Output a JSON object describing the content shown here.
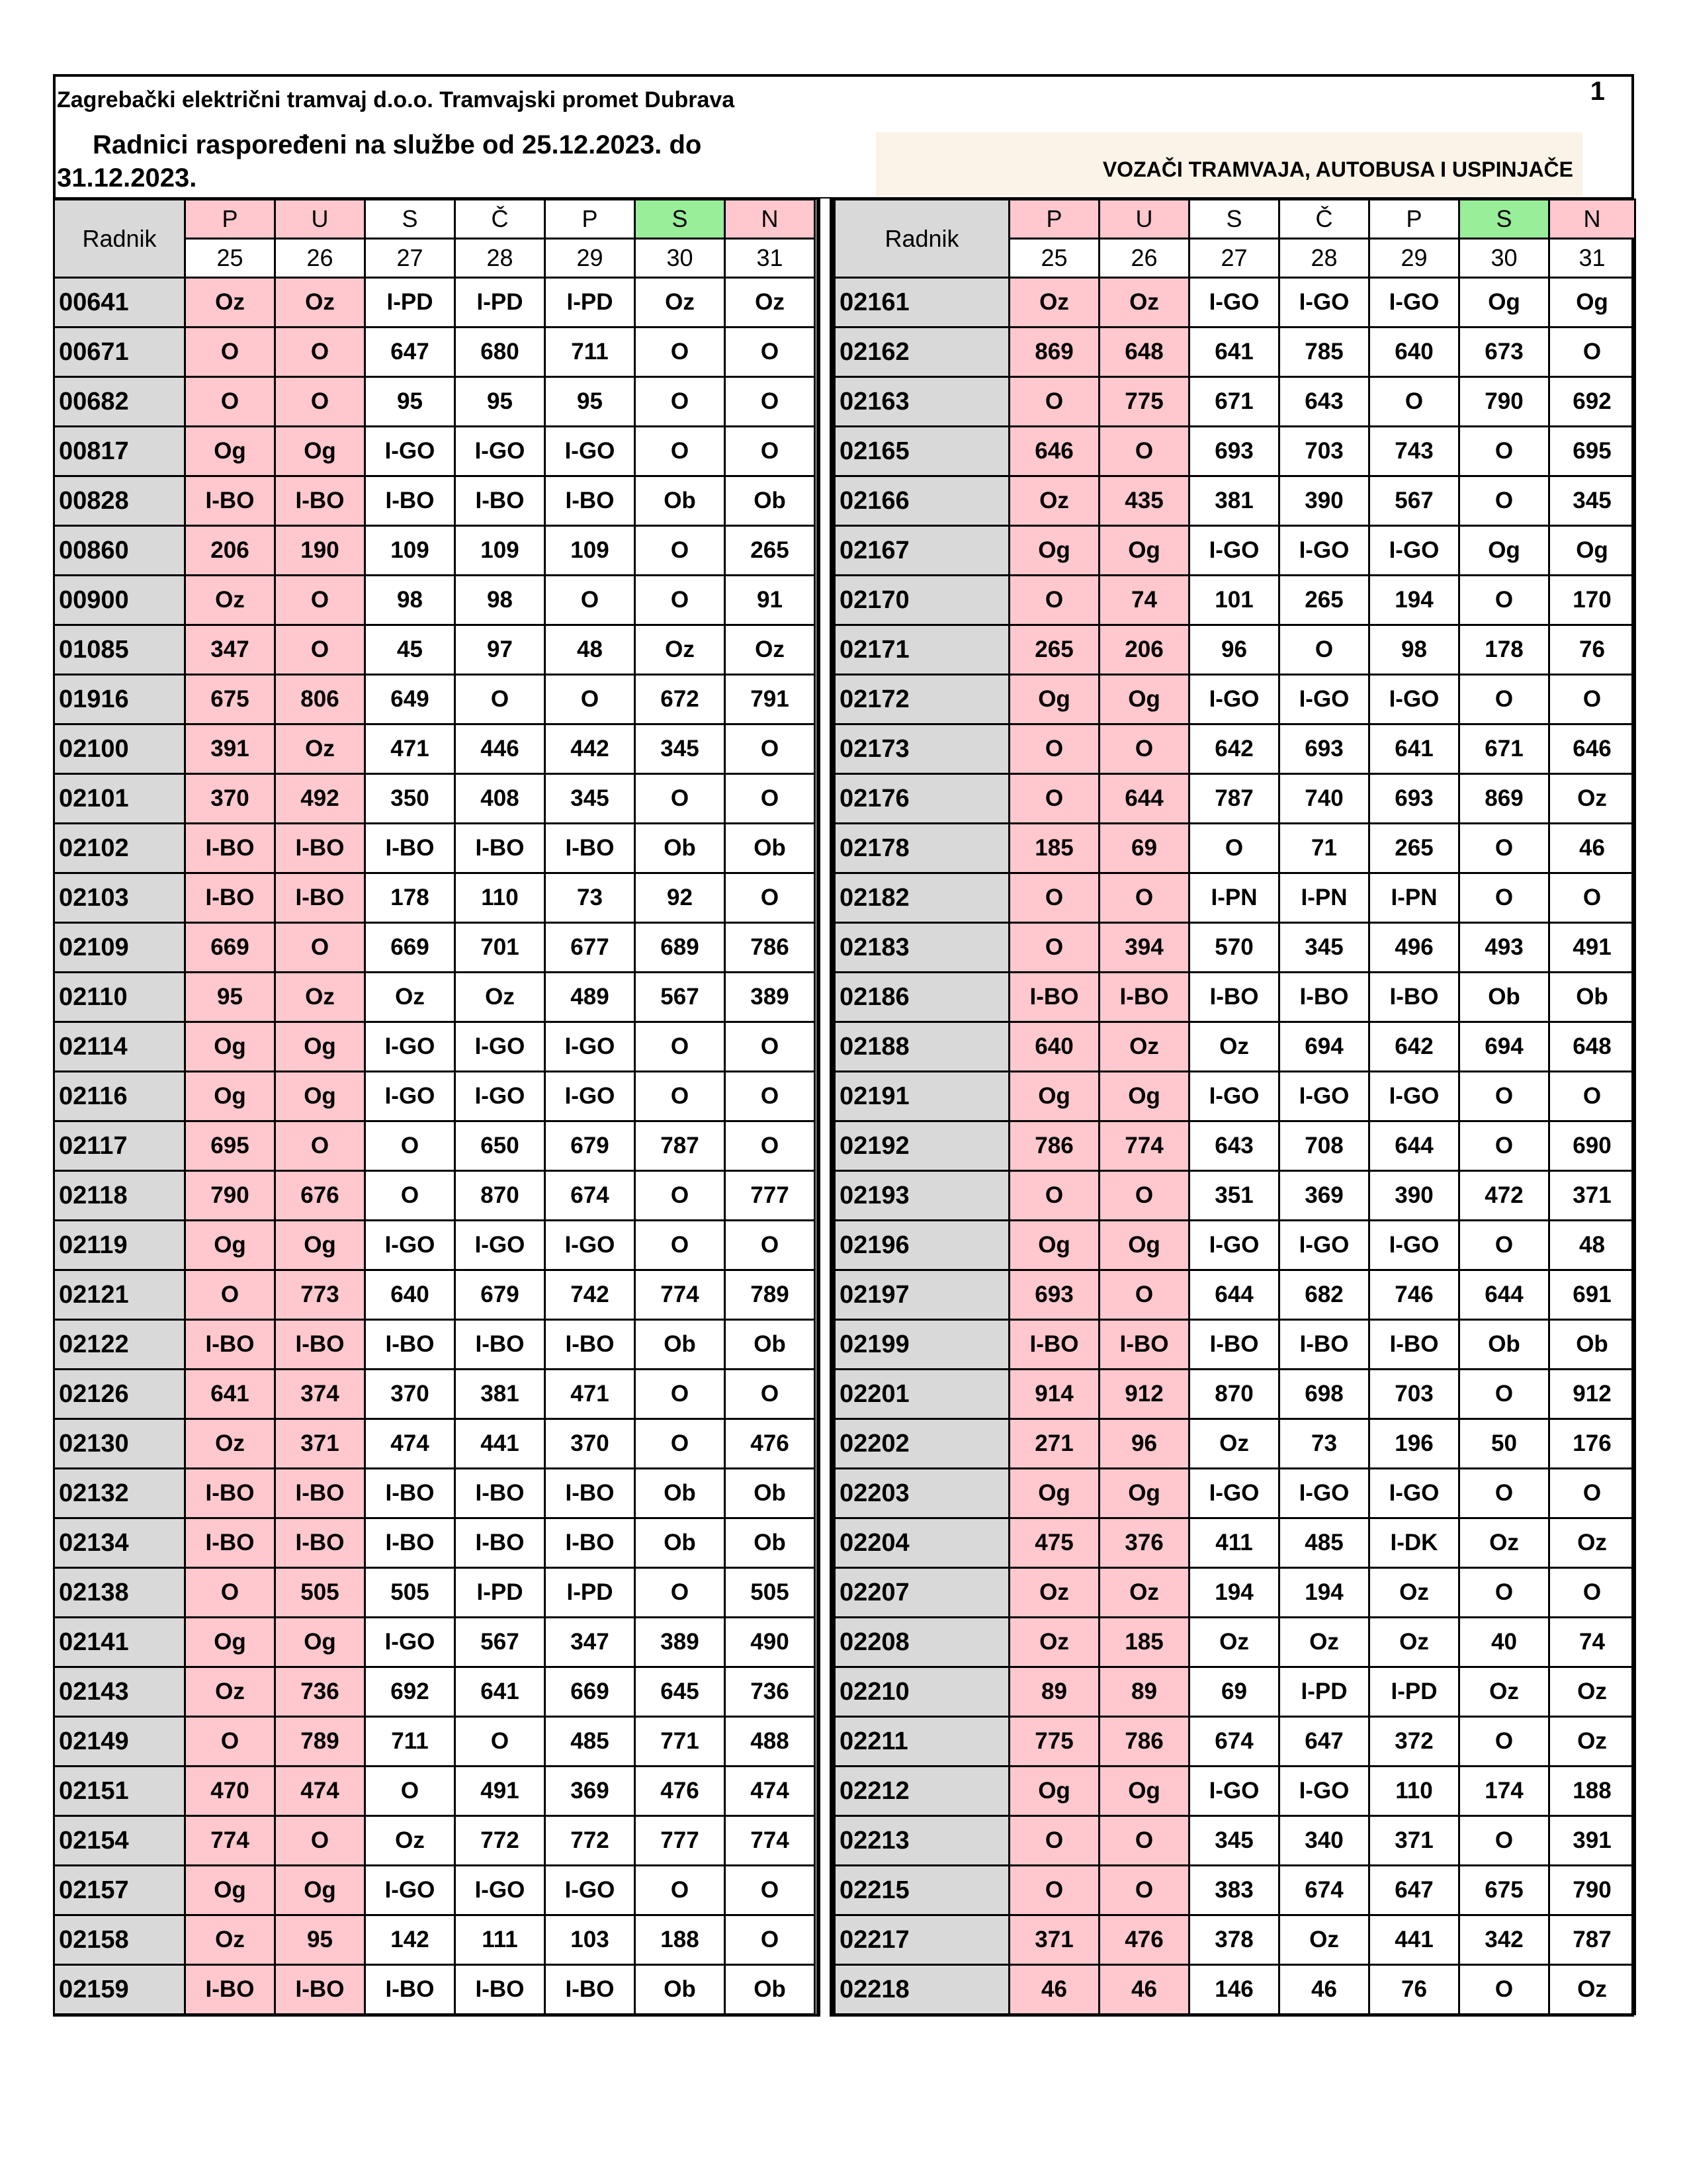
{
  "header": {
    "company": "Zagrebački električni tramvaj d.o.o. Tramvajski promet Dubrava",
    "page_number": "1",
    "subtitle_line1": "Radnici raspoređeni na službe od 25.12.2023. do",
    "subtitle_line2": "31.12.2023.",
    "category": "VOZAČI TRAMVAJA, AUTOBUSA I USPINJAČE"
  },
  "table": {
    "radnik_label": "Radnik",
    "days": [
      "P",
      "U",
      "S",
      "Č",
      "P",
      "S",
      "N"
    ],
    "dates": [
      "25",
      "26",
      "27",
      "28",
      "29",
      "30",
      "31"
    ],
    "colors": {
      "holiday": "#ffc7ce",
      "saturday": "#99ee99",
      "id_cell": "#d9d9d9"
    },
    "left_rows": [
      [
        "00641",
        "Oz",
        "Oz",
        "I-PD",
        "I-PD",
        "I-PD",
        "Oz",
        "Oz"
      ],
      [
        "00671",
        "O",
        "O",
        "647",
        "680",
        "711",
        "O",
        "O"
      ],
      [
        "00682",
        "O",
        "O",
        "95",
        "95",
        "95",
        "O",
        "O"
      ],
      [
        "00817",
        "Og",
        "Og",
        "I-GO",
        "I-GO",
        "I-GO",
        "O",
        "O"
      ],
      [
        "00828",
        "I-BO",
        "I-BO",
        "I-BO",
        "I-BO",
        "I-BO",
        "Ob",
        "Ob"
      ],
      [
        "00860",
        "206",
        "190",
        "109",
        "109",
        "109",
        "O",
        "265"
      ],
      [
        "00900",
        "Oz",
        "O",
        "98",
        "98",
        "O",
        "O",
        "91"
      ],
      [
        "01085",
        "347",
        "O",
        "45",
        "97",
        "48",
        "Oz",
        "Oz"
      ],
      [
        "01916",
        "675",
        "806",
        "649",
        "O",
        "O",
        "672",
        "791"
      ],
      [
        "02100",
        "391",
        "Oz",
        "471",
        "446",
        "442",
        "345",
        "O"
      ],
      [
        "02101",
        "370",
        "492",
        "350",
        "408",
        "345",
        "O",
        "O"
      ],
      [
        "02102",
        "I-BO",
        "I-BO",
        "I-BO",
        "I-BO",
        "I-BO",
        "Ob",
        "Ob"
      ],
      [
        "02103",
        "I-BO",
        "I-BO",
        "178",
        "110",
        "73",
        "92",
        "O"
      ],
      [
        "02109",
        "669",
        "O",
        "669",
        "701",
        "677",
        "689",
        "786"
      ],
      [
        "02110",
        "95",
        "Oz",
        "Oz",
        "Oz",
        "489",
        "567",
        "389"
      ],
      [
        "02114",
        "Og",
        "Og",
        "I-GO",
        "I-GO",
        "I-GO",
        "O",
        "O"
      ],
      [
        "02116",
        "Og",
        "Og",
        "I-GO",
        "I-GO",
        "I-GO",
        "O",
        "O"
      ],
      [
        "02117",
        "695",
        "O",
        "O",
        "650",
        "679",
        "787",
        "O"
      ],
      [
        "02118",
        "790",
        "676",
        "O",
        "870",
        "674",
        "O",
        "777"
      ],
      [
        "02119",
        "Og",
        "Og",
        "I-GO",
        "I-GO",
        "I-GO",
        "O",
        "O"
      ],
      [
        "02121",
        "O",
        "773",
        "640",
        "679",
        "742",
        "774",
        "789"
      ],
      [
        "02122",
        "I-BO",
        "I-BO",
        "I-BO",
        "I-BO",
        "I-BO",
        "Ob",
        "Ob"
      ],
      [
        "02126",
        "641",
        "374",
        "370",
        "381",
        "471",
        "O",
        "O"
      ],
      [
        "02130",
        "Oz",
        "371",
        "474",
        "441",
        "370",
        "O",
        "476"
      ],
      [
        "02132",
        "I-BO",
        "I-BO",
        "I-BO",
        "I-BO",
        "I-BO",
        "Ob",
        "Ob"
      ],
      [
        "02134",
        "I-BO",
        "I-BO",
        "I-BO",
        "I-BO",
        "I-BO",
        "Ob",
        "Ob"
      ],
      [
        "02138",
        "O",
        "505",
        "505",
        "I-PD",
        "I-PD",
        "O",
        "505"
      ],
      [
        "02141",
        "Og",
        "Og",
        "I-GO",
        "567",
        "347",
        "389",
        "490"
      ],
      [
        "02143",
        "Oz",
        "736",
        "692",
        "641",
        "669",
        "645",
        "736"
      ],
      [
        "02149",
        "O",
        "789",
        "711",
        "O",
        "485",
        "771",
        "488"
      ],
      [
        "02151",
        "470",
        "474",
        "O",
        "491",
        "369",
        "476",
        "474"
      ],
      [
        "02154",
        "774",
        "O",
        "Oz",
        "772",
        "772",
        "777",
        "774"
      ],
      [
        "02157",
        "Og",
        "Og",
        "I-GO",
        "I-GO",
        "I-GO",
        "O",
        "O"
      ],
      [
        "02158",
        "Oz",
        "95",
        "142",
        "111",
        "103",
        "188",
        "O"
      ],
      [
        "02159",
        "I-BO",
        "I-BO",
        "I-BO",
        "I-BO",
        "I-BO",
        "Ob",
        "Ob"
      ]
    ],
    "right_rows": [
      [
        "02161",
        "Oz",
        "Oz",
        "I-GO",
        "I-GO",
        "I-GO",
        "Og",
        "Og"
      ],
      [
        "02162",
        "869",
        "648",
        "641",
        "785",
        "640",
        "673",
        "O"
      ],
      [
        "02163",
        "O",
        "775",
        "671",
        "643",
        "O",
        "790",
        "692"
      ],
      [
        "02165",
        "646",
        "O",
        "693",
        "703",
        "743",
        "O",
        "695"
      ],
      [
        "02166",
        "Oz",
        "435",
        "381",
        "390",
        "567",
        "O",
        "345"
      ],
      [
        "02167",
        "Og",
        "Og",
        "I-GO",
        "I-GO",
        "I-GO",
        "Og",
        "Og"
      ],
      [
        "02170",
        "O",
        "74",
        "101",
        "265",
        "194",
        "O",
        "170"
      ],
      [
        "02171",
        "265",
        "206",
        "96",
        "O",
        "98",
        "178",
        "76"
      ],
      [
        "02172",
        "Og",
        "Og",
        "I-GO",
        "I-GO",
        "I-GO",
        "O",
        "O"
      ],
      [
        "02173",
        "O",
        "O",
        "642",
        "693",
        "641",
        "671",
        "646"
      ],
      [
        "02176",
        "O",
        "644",
        "787",
        "740",
        "693",
        "869",
        "Oz"
      ],
      [
        "02178",
        "185",
        "69",
        "O",
        "71",
        "265",
        "O",
        "46"
      ],
      [
        "02182",
        "O",
        "O",
        "I-PN",
        "I-PN",
        "I-PN",
        "O",
        "O"
      ],
      [
        "02183",
        "O",
        "394",
        "570",
        "345",
        "496",
        "493",
        "491"
      ],
      [
        "02186",
        "I-BO",
        "I-BO",
        "I-BO",
        "I-BO",
        "I-BO",
        "Ob",
        "Ob"
      ],
      [
        "02188",
        "640",
        "Oz",
        "Oz",
        "694",
        "642",
        "694",
        "648"
      ],
      [
        "02191",
        "Og",
        "Og",
        "I-GO",
        "I-GO",
        "I-GO",
        "O",
        "O"
      ],
      [
        "02192",
        "786",
        "774",
        "643",
        "708",
        "644",
        "O",
        "690"
      ],
      [
        "02193",
        "O",
        "O",
        "351",
        "369",
        "390",
        "472",
        "371"
      ],
      [
        "02196",
        "Og",
        "Og",
        "I-GO",
        "I-GO",
        "I-GO",
        "O",
        "48"
      ],
      [
        "02197",
        "693",
        "O",
        "644",
        "682",
        "746",
        "644",
        "691"
      ],
      [
        "02199",
        "I-BO",
        "I-BO",
        "I-BO",
        "I-BO",
        "I-BO",
        "Ob",
        "Ob"
      ],
      [
        "02201",
        "914",
        "912",
        "870",
        "698",
        "703",
        "O",
        "912"
      ],
      [
        "02202",
        "271",
        "96",
        "Oz",
        "73",
        "196",
        "50",
        "176"
      ],
      [
        "02203",
        "Og",
        "Og",
        "I-GO",
        "I-GO",
        "I-GO",
        "O",
        "O"
      ],
      [
        "02204",
        "475",
        "376",
        "411",
        "485",
        "I-DK",
        "Oz",
        "Oz"
      ],
      [
        "02207",
        "Oz",
        "Oz",
        "194",
        "194",
        "Oz",
        "O",
        "O"
      ],
      [
        "02208",
        "Oz",
        "185",
        "Oz",
        "Oz",
        "Oz",
        "40",
        "74"
      ],
      [
        "02210",
        "89",
        "89",
        "69",
        "I-PD",
        "I-PD",
        "Oz",
        "Oz"
      ],
      [
        "02211",
        "775",
        "786",
        "674",
        "647",
        "372",
        "O",
        "Oz"
      ],
      [
        "02212",
        "Og",
        "Og",
        "I-GO",
        "I-GO",
        "110",
        "174",
        "188"
      ],
      [
        "02213",
        "O",
        "O",
        "345",
        "340",
        "371",
        "O",
        "391"
      ],
      [
        "02215",
        "O",
        "O",
        "383",
        "674",
        "647",
        "675",
        "790"
      ],
      [
        "02217",
        "371",
        "476",
        "378",
        "Oz",
        "441",
        "342",
        "787"
      ],
      [
        "02218",
        "46",
        "46",
        "146",
        "46",
        "76",
        "O",
        "Oz"
      ]
    ]
  }
}
